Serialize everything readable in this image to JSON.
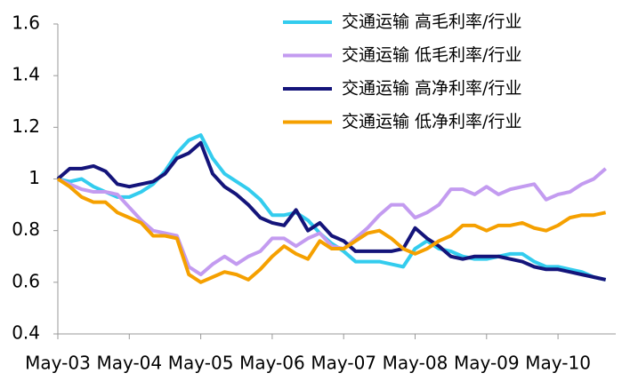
{
  "chart_data": {
    "type": "line",
    "categories": [
      "May-03",
      null,
      null,
      null,
      null,
      null,
      "May-04",
      null,
      null,
      null,
      null,
      null,
      "May-05",
      null,
      null,
      null,
      null,
      null,
      "May-06",
      null,
      null,
      null,
      null,
      null,
      "May-07",
      null,
      null,
      null,
      null,
      null,
      "May-08",
      null,
      null,
      null,
      null,
      null,
      "May-09",
      null,
      null,
      null,
      null,
      null,
      "May-10",
      null,
      null,
      null,
      null
    ],
    "series": [
      {
        "name": "交通运输 高毛利率/行业",
        "color": "#33ccee",
        "values": [
          1.0,
          0.99,
          1.0,
          0.97,
          0.95,
          0.93,
          0.93,
          0.95,
          0.98,
          1.03,
          1.1,
          1.15,
          1.17,
          1.08,
          1.02,
          0.99,
          0.96,
          0.92,
          0.86,
          0.86,
          0.87,
          0.84,
          0.79,
          0.75,
          0.72,
          0.68,
          0.68,
          0.68,
          0.67,
          0.66,
          0.73,
          0.76,
          0.73,
          0.72,
          0.7,
          0.69,
          0.69,
          0.7,
          0.71,
          0.71,
          0.68,
          0.66,
          0.66,
          0.65,
          0.64,
          0.62,
          0.61
        ]
      },
      {
        "name": "交通运输 低毛利率/行业",
        "color": "#c39bf0",
        "values": [
          1.0,
          0.98,
          0.96,
          0.95,
          0.95,
          0.94,
          0.89,
          0.84,
          0.8,
          0.79,
          0.78,
          0.66,
          0.63,
          0.67,
          0.7,
          0.67,
          0.7,
          0.72,
          0.77,
          0.77,
          0.74,
          0.77,
          0.79,
          0.74,
          0.73,
          0.77,
          0.81,
          0.86,
          0.9,
          0.9,
          0.85,
          0.87,
          0.9,
          0.96,
          0.96,
          0.94,
          0.97,
          0.94,
          0.96,
          0.97,
          0.98,
          0.92,
          0.94,
          0.95,
          0.98,
          1.0,
          1.04
        ]
      },
      {
        "name": "交通运输 高净利率/行业",
        "color": "#14147a",
        "values": [
          1.0,
          1.04,
          1.04,
          1.05,
          1.03,
          0.98,
          0.97,
          0.98,
          0.99,
          1.02,
          1.08,
          1.1,
          1.14,
          1.02,
          0.97,
          0.94,
          0.9,
          0.85,
          0.83,
          0.82,
          0.88,
          0.8,
          0.83,
          0.78,
          0.76,
          0.72,
          0.72,
          0.72,
          0.72,
          0.73,
          0.81,
          0.77,
          0.74,
          0.7,
          0.69,
          0.7,
          0.7,
          0.7,
          0.69,
          0.68,
          0.66,
          0.65,
          0.65,
          0.64,
          0.63,
          0.62,
          0.61
        ]
      },
      {
        "name": "交通运输 低净利率/行业",
        "color": "#f5a000",
        "values": [
          1.0,
          0.97,
          0.93,
          0.91,
          0.91,
          0.87,
          0.85,
          0.83,
          0.78,
          0.78,
          0.77,
          0.63,
          0.6,
          0.62,
          0.64,
          0.63,
          0.61,
          0.65,
          0.7,
          0.74,
          0.71,
          0.69,
          0.76,
          0.73,
          0.73,
          0.76,
          0.79,
          0.8,
          0.77,
          0.73,
          0.71,
          0.73,
          0.76,
          0.78,
          0.82,
          0.82,
          0.8,
          0.82,
          0.82,
          0.83,
          0.81,
          0.8,
          0.82,
          0.85,
          0.86,
          0.86,
          0.87
        ]
      }
    ],
    "ylim": [
      0.4,
      1.6
    ],
    "yticks": [
      0.4,
      0.6,
      0.8,
      1,
      1.2,
      1.4,
      1.6
    ],
    "grid": false,
    "legend": "upper right"
  }
}
